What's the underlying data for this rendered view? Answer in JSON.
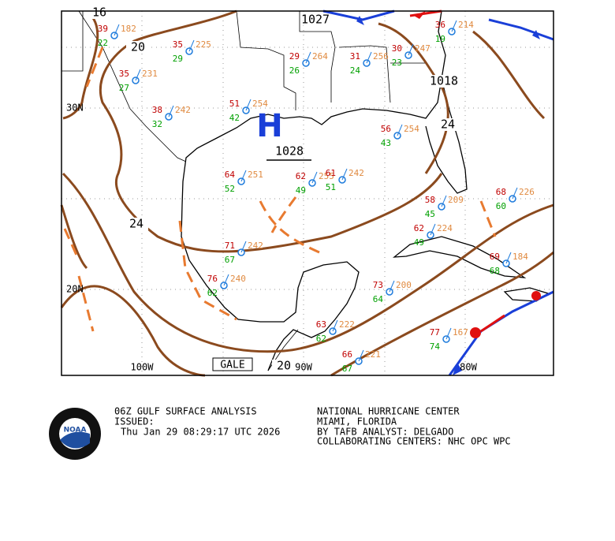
{
  "map": {
    "isobar_labels": [
      "16",
      "20",
      "24",
      "20",
      "1027",
      "1018",
      "24"
    ],
    "high": {
      "symbol": "H",
      "pressure": "1028"
    },
    "lat_labels": [
      "30N",
      "20N"
    ],
    "lon_labels": [
      "100W",
      "90W",
      "80W"
    ],
    "gale": "GALE",
    "stations": [
      {
        "t": "39",
        "td": "22",
        "p": "182"
      },
      {
        "t": "35",
        "td": "29",
        "p": "225"
      },
      {
        "t": "35",
        "td": "27",
        "p": "231"
      },
      {
        "t": "29",
        "td": "26",
        "p": "264"
      },
      {
        "t": "31",
        "td": "24",
        "p": "256"
      },
      {
        "t": "30",
        "td": "23",
        "p": "247"
      },
      {
        "t": "36",
        "td": "19",
        "p": "214"
      },
      {
        "t": "38",
        "td": "32",
        "p": "242"
      },
      {
        "t": "51",
        "td": "42",
        "p": "254"
      },
      {
        "t": "56",
        "td": "43",
        "p": "254"
      },
      {
        "t": "64",
        "td": "52",
        "p": "251"
      },
      {
        "t": "62",
        "td": "49",
        "p": "255"
      },
      {
        "t": "61",
        "td": "51",
        "p": "242"
      },
      {
        "t": "58",
        "td": "45",
        "p": "209"
      },
      {
        "t": "62",
        "td": "49",
        "p": "224"
      },
      {
        "t": "71",
        "td": "67",
        "p": "242"
      },
      {
        "t": "76",
        "td": "62",
        "p": "240"
      },
      {
        "t": "73",
        "td": "64",
        "p": "200"
      },
      {
        "t": "77",
        "td": "74",
        "p": "167"
      },
      {
        "t": "69",
        "td": "68",
        "p": "184"
      },
      {
        "t": "68",
        "td": "60",
        "p": "226"
      },
      {
        "t": "63",
        "td": "62",
        "p": "222"
      },
      {
        "t": "66",
        "td": "67",
        "p": "221"
      }
    ]
  },
  "footer": {
    "logo": "NOAA",
    "title": "06Z GULF SURFACE ANALYSIS",
    "issued": "ISSUED:",
    "time": "Thu Jan 29 08:29:17 UTC 2026",
    "center": "NATIONAL HURRICANE CENTER",
    "location": "MIAMI,  FLORIDA",
    "analyst": "BY TAFB ANALYST: DELGADO",
    "collab": "COLLABORATING CENTERS: NHC OPC WPC"
  }
}
